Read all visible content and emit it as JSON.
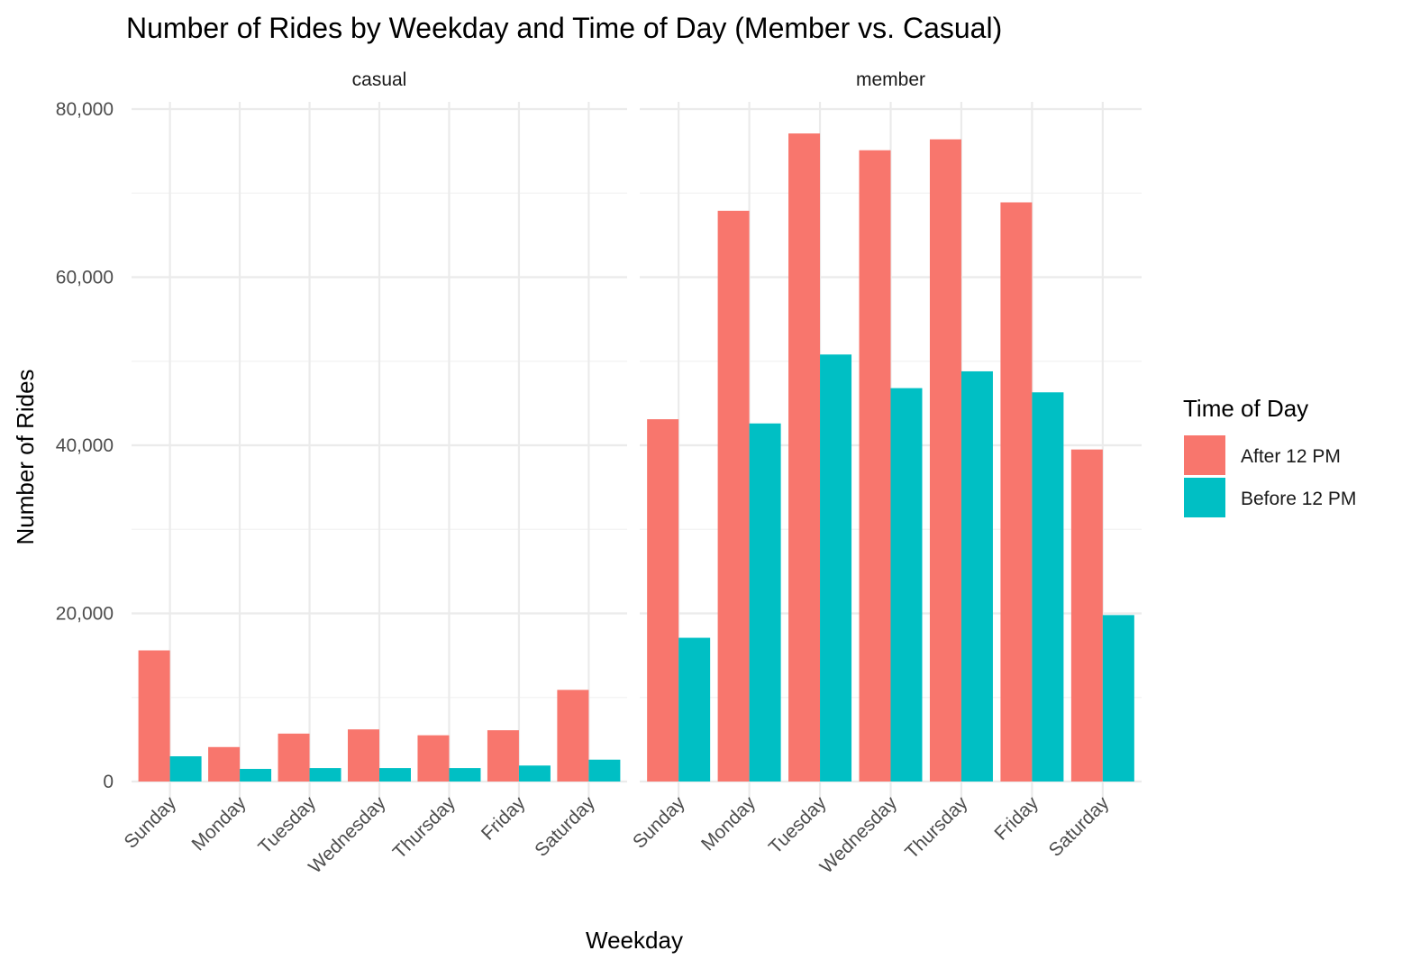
{
  "chart_data": {
    "type": "bar",
    "title": "Number of Rides by Weekday and Time of Day (Member vs. Casual)",
    "xlabel": "Weekday",
    "ylabel": "Number of Rides",
    "categories": [
      "Sunday",
      "Monday",
      "Tuesday",
      "Wednesday",
      "Thursday",
      "Friday",
      "Saturday"
    ],
    "ylim": [
      0,
      80000
    ],
    "yticks": [
      0,
      20000,
      40000,
      60000,
      80000
    ],
    "ytick_labels": [
      "0",
      "20,000",
      "40,000",
      "60,000",
      "80,000"
    ],
    "legend": {
      "title": "Time of Day",
      "position": "right",
      "entries": [
        {
          "label": "After 12 PM",
          "color": "#F8766D"
        },
        {
          "label": "Before 12 PM",
          "color": "#00BFC4"
        }
      ]
    },
    "panels": [
      {
        "label": "casual",
        "series": [
          {
            "name": "After 12 PM",
            "color": "#F8766D",
            "values": [
              15600,
              4100,
              5700,
              6200,
              5500,
              6100,
              10900
            ]
          },
          {
            "name": "Before 12 PM",
            "color": "#00BFC4",
            "values": [
              3000,
              1500,
              1600,
              1600,
              1600,
              1900,
              2600
            ]
          }
        ]
      },
      {
        "label": "member",
        "series": [
          {
            "name": "After 12 PM",
            "color": "#F8766D",
            "values": [
              43100,
              67900,
              77100,
              75100,
              76400,
              68900,
              39500
            ]
          },
          {
            "name": "Before 12 PM",
            "color": "#00BFC4",
            "values": [
              17100,
              42600,
              50800,
              46800,
              48800,
              46300,
              19800
            ]
          }
        ]
      }
    ],
    "grid": true
  }
}
